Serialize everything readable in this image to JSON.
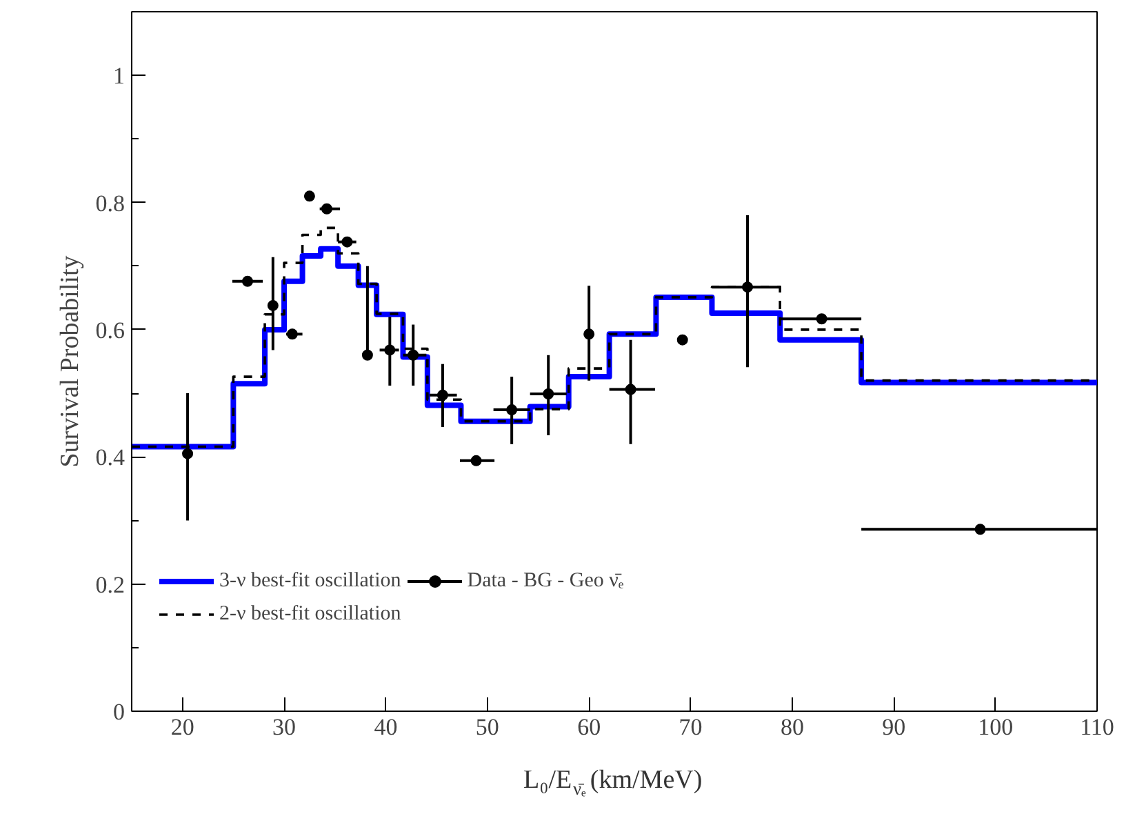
{
  "chart_data": {
    "type": "step",
    "xlabel": "L₀/E$_{ν̄ₑ}$ (km/MeV)",
    "ylabel": "Survival Probability",
    "xlim": [
      15,
      110
    ],
    "ylim": [
      0,
      1.1
    ],
    "xticks": [
      20,
      30,
      40,
      50,
      60,
      70,
      80,
      90,
      100,
      110
    ],
    "yticks": [
      0,
      0.2,
      0.4,
      0.6,
      0.8,
      1
    ],
    "grid": false,
    "legend": "bottom left",
    "series": [
      {
        "name": "3-ν best-fit oscillation",
        "color": "#0000ff",
        "line_style": "solid",
        "marker": "none",
        "x": [
          15,
          25,
          28.1,
          30,
          31.8,
          33.6,
          35.3,
          37.3,
          39.1,
          41.7,
          44.1,
          47.4,
          54.2,
          58,
          62,
          66.6,
          72.1,
          78.8,
          86.8,
          110
        ],
        "values": [
          0.416,
          0.515,
          0.6,
          0.676,
          0.716,
          0.727,
          0.7,
          0.67,
          0.624,
          0.557,
          0.481,
          0.456,
          0.479,
          0.526,
          0.593,
          0.651,
          0.626,
          0.584,
          0.517,
          0.517
        ]
      },
      {
        "name": "2-ν best-fit oscillation",
        "color": "#000000",
        "line_style": "dashed",
        "marker": "none",
        "x": [
          15,
          25,
          28.1,
          30,
          31.8,
          33.6,
          35.3,
          37.3,
          39.1,
          41.7,
          44.1,
          47.4,
          54.2,
          58,
          62,
          66.6,
          72.1,
          78.8,
          86.8,
          110
        ],
        "values": [
          0.416,
          0.526,
          0.624,
          0.705,
          0.749,
          0.76,
          0.72,
          0.672,
          0.625,
          0.57,
          0.49,
          0.456,
          0.475,
          0.539,
          0.593,
          0.651,
          0.667,
          0.6,
          0.52,
          0.52
        ]
      },
      {
        "name": "Data - BG - Geo ν̄ₑ",
        "type": "scatter",
        "color": "#000000",
        "marker": "circle",
        "x": [
          20.5,
          26.4,
          28.9,
          30.8,
          32.5,
          34.2,
          36.2,
          38.2,
          40.4,
          42.7,
          45.6,
          48.9,
          52.4,
          56,
          60,
          64.1,
          69.2,
          75.6,
          82.9,
          98.5
        ],
        "values": [
          0.405,
          0.676,
          0.638,
          0.593,
          0.81,
          0.79,
          0.738,
          0.56,
          0.568,
          0.56,
          0.497,
          0.394,
          0.474,
          0.499,
          0.593,
          0.506,
          0.584,
          0.667,
          0.617,
          0.286
        ],
        "errors": [
          [
            0.3,
            0.5
          ],
          null,
          [
            0.568,
            0.714
          ],
          null,
          null,
          null,
          null,
          [
            0.56,
            0.7
          ],
          [
            0.512,
            0.62
          ],
          [
            0.512,
            0.608
          ],
          [
            0.447,
            0.546
          ],
          null,
          [
            0.42,
            0.526
          ],
          [
            0.434,
            0.56
          ],
          [
            0.52,
            0.669
          ],
          [
            0.42,
            0.584
          ],
          null,
          [
            0.541,
            0.78
          ],
          null,
          null
        ],
        "xerrors": [
          null,
          [
            24.9,
            27.9
          ],
          null,
          [
            30.2,
            31.8
          ],
          null,
          [
            33.5,
            35.5
          ],
          [
            35.3,
            37.1
          ],
          null,
          [
            39.4,
            41.3
          ],
          [
            41.7,
            44
          ],
          [
            44.3,
            47
          ],
          [
            47.3,
            50.7
          ],
          [
            50.6,
            54.2
          ],
          [
            54.2,
            57.8
          ],
          null,
          [
            62,
            66.5
          ],
          null,
          [
            72.1,
            78.9
          ],
          [
            78.9,
            86.8
          ],
          [
            86.8,
            110
          ]
        ]
      }
    ]
  }
}
